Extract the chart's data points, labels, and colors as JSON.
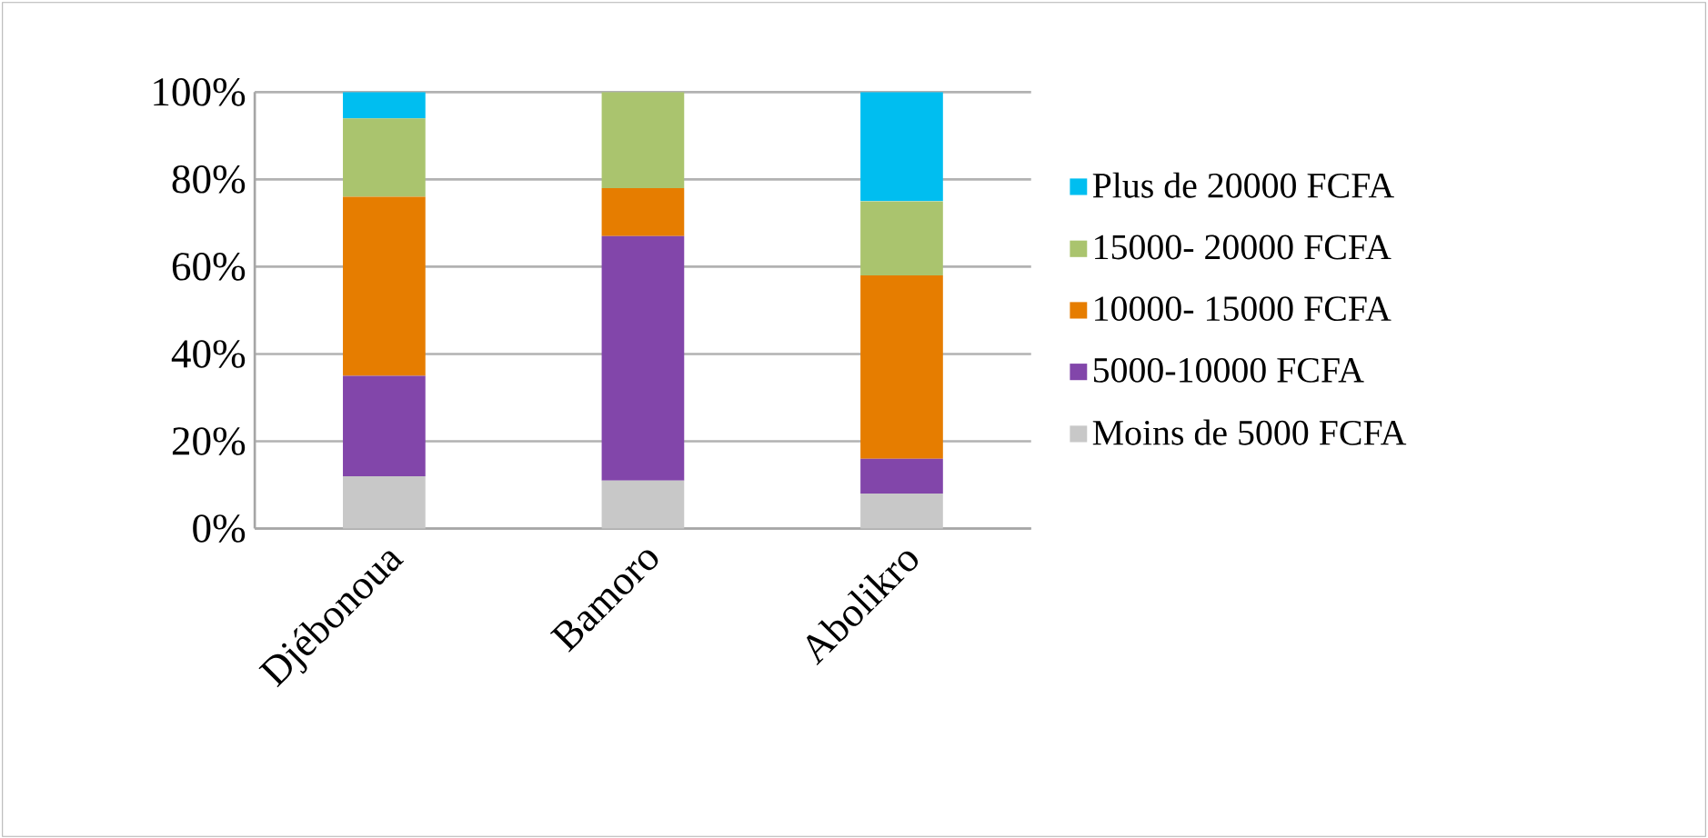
{
  "chart_data": {
    "type": "bar",
    "stacked": true,
    "categories": [
      "Djébonoua",
      "Bamoro",
      "Abolikro"
    ],
    "series": [
      {
        "name": "Moins de 5000 FCFA",
        "color": "#c8c8c8",
        "values": [
          12,
          11,
          8
        ]
      },
      {
        "name": "5000-10000 FCFA",
        "color": "#8246aa",
        "values": [
          23,
          56,
          8
        ]
      },
      {
        "name": "10000- 15000 FCFA",
        "color": "#e67d00",
        "values": [
          41,
          11,
          42
        ]
      },
      {
        "name": "15000- 20000 FCFA",
        "color": "#aac46e",
        "values": [
          18,
          22,
          17
        ]
      },
      {
        "name": "Plus de 20000 FCFA",
        "color": "#00bef0",
        "values": [
          6,
          0,
          25
        ]
      }
    ],
    "ylim": [
      0,
      100
    ],
    "yticks": [
      {
        "value": 0,
        "label": "0%"
      },
      {
        "value": 20,
        "label": "20%"
      },
      {
        "value": 40,
        "label": "40%"
      },
      {
        "value": 60,
        "label": "60%"
      },
      {
        "value": 80,
        "label": "80%"
      },
      {
        "value": 100,
        "label": "100%"
      }
    ],
    "grid": "y",
    "legend": "right"
  }
}
